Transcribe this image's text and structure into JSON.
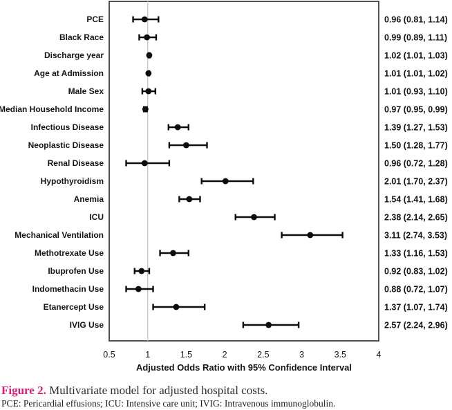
{
  "figure": {
    "caption_label": "Figure 2.",
    "caption_text": " Multivariate model for adjusted hospital costs.",
    "footnote": "PCE: Pericardial effusions; ICU: Intensive care unit; IVIG: Intravenous immunoglobulin."
  },
  "colors": {
    "caption_label_pink": "#d91e78",
    "caption_text_color": "#2d2d2d",
    "marker_black": "#0d0d0d",
    "frame_gray": "#3f3f3f",
    "reference_line_gray": "#c9c9c9",
    "text_black": "#141414"
  },
  "chart_data": {
    "type": "scatter",
    "subtype": "forest-plot",
    "title": "",
    "xlabel": "Adjusted Odds Ratio with 95% Confidence Interval",
    "ylabel": "",
    "xlim": [
      0.5,
      4
    ],
    "reference_line_x": 1,
    "grid": "reference-line-only",
    "legend": "none",
    "x_ticks": [
      {
        "value": 0.5,
        "label": "0.5"
      },
      {
        "value": 1,
        "label": "1"
      },
      {
        "value": 1.5,
        "label": "1.5"
      },
      {
        "value": 2,
        "label": "2"
      },
      {
        "value": 2.5,
        "label": "2.5"
      },
      {
        "value": 3,
        "label": "3"
      },
      {
        "value": 3.5,
        "label": "3.5"
      },
      {
        "value": 4,
        "label": "4"
      }
    ],
    "rows": [
      {
        "label": "PCE",
        "odds_ratio": 0.96,
        "ci_low": 0.81,
        "ci_high": 1.14,
        "value_text": "0.96 (0.81, 1.14)"
      },
      {
        "label": "Black Race",
        "odds_ratio": 0.99,
        "ci_low": 0.89,
        "ci_high": 1.11,
        "value_text": "0.99 (0.89, 1.11)"
      },
      {
        "label": "Discharge year",
        "odds_ratio": 1.02,
        "ci_low": 1.01,
        "ci_high": 1.03,
        "value_text": "1.02 (1.01, 1.03)"
      },
      {
        "label": "Age at Admission",
        "odds_ratio": 1.01,
        "ci_low": 1.01,
        "ci_high": 1.02,
        "value_text": "1.01 (1.01, 1.02)"
      },
      {
        "label": "Male Sex",
        "odds_ratio": 1.01,
        "ci_low": 0.93,
        "ci_high": 1.1,
        "value_text": "1.01 (0.93, 1.10)"
      },
      {
        "label": "Median Household Income",
        "odds_ratio": 0.97,
        "ci_low": 0.95,
        "ci_high": 0.99,
        "value_text": "0.97 (0.95, 0.99)"
      },
      {
        "label": "Infectious Disease",
        "odds_ratio": 1.39,
        "ci_low": 1.27,
        "ci_high": 1.53,
        "value_text": "1.39 (1.27, 1.53)"
      },
      {
        "label": "Neoplastic Disease",
        "odds_ratio": 1.5,
        "ci_low": 1.28,
        "ci_high": 1.77,
        "value_text": "1.50 (1.28, 1.77)"
      },
      {
        "label": "Renal Disease",
        "odds_ratio": 0.96,
        "ci_low": 0.72,
        "ci_high": 1.28,
        "value_text": "0.96 (0.72, 1.28)"
      },
      {
        "label": "Hypothyroidism",
        "odds_ratio": 2.01,
        "ci_low": 1.7,
        "ci_high": 2.37,
        "value_text": "2.01 (1.70, 2.37)"
      },
      {
        "label": "Anemia",
        "odds_ratio": 1.54,
        "ci_low": 1.41,
        "ci_high": 1.68,
        "value_text": "1.54 (1.41, 1.68)"
      },
      {
        "label": "ICU",
        "odds_ratio": 2.38,
        "ci_low": 2.14,
        "ci_high": 2.65,
        "value_text": "2.38 (2.14, 2.65)"
      },
      {
        "label": "Mechanical Ventilation",
        "odds_ratio": 3.11,
        "ci_low": 2.74,
        "ci_high": 3.53,
        "value_text": "3.11 (2.74, 3.53)"
      },
      {
        "label": "Methotrexate Use",
        "odds_ratio": 1.33,
        "ci_low": 1.16,
        "ci_high": 1.53,
        "value_text": "1.33 (1.16, 1.53)"
      },
      {
        "label": "Ibuprofen Use",
        "odds_ratio": 0.92,
        "ci_low": 0.83,
        "ci_high": 1.02,
        "value_text": "0.92 (0.83, 1.02)"
      },
      {
        "label": "Indomethacin Use",
        "odds_ratio": 0.88,
        "ci_low": 0.72,
        "ci_high": 1.07,
        "value_text": "0.88 (0.72, 1.07)"
      },
      {
        "label": "Etanercept Use",
        "odds_ratio": 1.37,
        "ci_low": 1.07,
        "ci_high": 1.74,
        "value_text": "1.37 (1.07, 1.74)"
      },
      {
        "label": "IVIG Use",
        "odds_ratio": 2.57,
        "ci_low": 2.24,
        "ci_high": 2.96,
        "value_text": "2.57 (2.24, 2.96)"
      }
    ]
  }
}
